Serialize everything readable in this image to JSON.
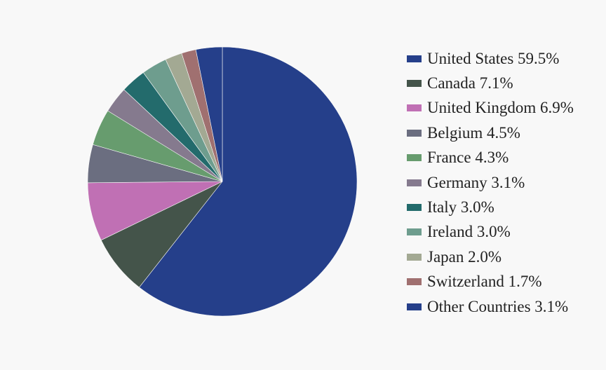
{
  "chart_data": {
    "type": "pie",
    "title": "",
    "legend_position": "right",
    "slices": [
      {
        "label": "United States 59.5%",
        "value": 59.5,
        "color": "#253F8A"
      },
      {
        "label": "Canada 7.1%",
        "value": 7.1,
        "color": "#44544A"
      },
      {
        "label": "United Kingdom 6.9%",
        "value": 6.9,
        "color": "#C070B4"
      },
      {
        "label": "Belgium 4.5%",
        "value": 4.5,
        "color": "#6B6E80"
      },
      {
        "label": "France 4.3%",
        "value": 4.3,
        "color": "#679C6E"
      },
      {
        "label": "Germany 3.1%",
        "value": 3.1,
        "color": "#857A8E"
      },
      {
        "label": "Italy 3.0%",
        "value": 3.0,
        "color": "#236B6C"
      },
      {
        "label": "Ireland 3.0%",
        "value": 3.0,
        "color": "#6E9D8E"
      },
      {
        "label": "Japan 2.0%",
        "value": 2.0,
        "color": "#A3A993"
      },
      {
        "label": "Switzerland 1.7%",
        "value": 1.7,
        "color": "#A07070"
      },
      {
        "label": "Other Countries 3.1%",
        "value": 3.1,
        "color": "#253F8A"
      }
    ]
  }
}
